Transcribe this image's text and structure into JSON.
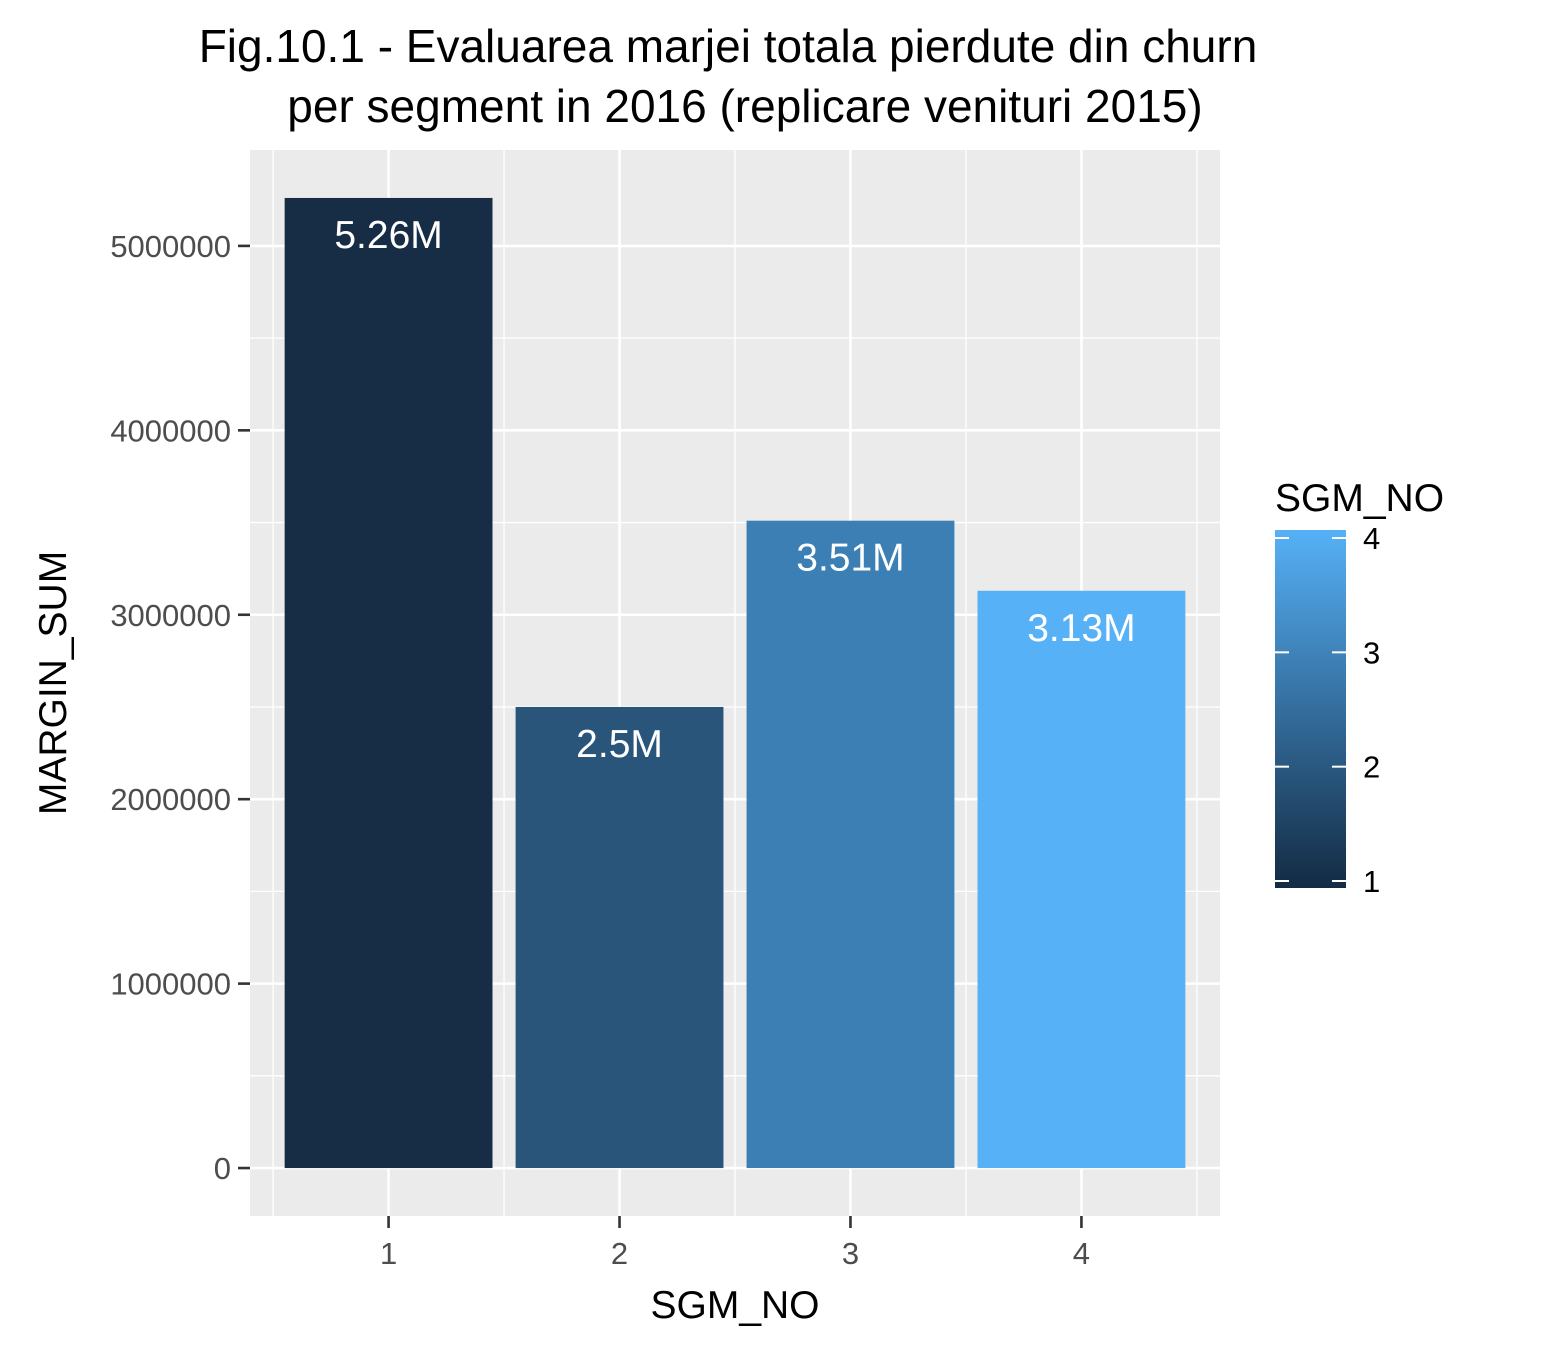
{
  "chart_data": {
    "type": "bar",
    "title_lines": [
      "Fig.10.1 - Evaluarea marjei totala pierdute din churn",
      "per segment in 2016 (replicare venituri 2015)"
    ],
    "xlabel": "SGM_NO",
    "ylabel": "MARGIN_SUM",
    "categories": [
      "1",
      "2",
      "3",
      "4"
    ],
    "values": [
      5260000,
      2500000,
      3510000,
      3130000
    ],
    "data_labels": [
      "5.26M",
      "2.5M",
      "3.51M",
      "3.13M"
    ],
    "bar_colors": [
      "#172d46",
      "#29557a",
      "#3b7fb5",
      "#56b1f7"
    ],
    "y_ticks": [
      0,
      1000000,
      2000000,
      3000000,
      4000000,
      5000000
    ],
    "y_tick_labels": [
      "0",
      "1000000",
      "2000000",
      "3000000",
      "4000000",
      "5000000"
    ],
    "ylim": [
      -260000,
      5520000
    ],
    "grid": true,
    "panel_background": "#ebebeb",
    "grid_color": "#ffffff",
    "legend": {
      "title": "SGM_NO",
      "position": "right",
      "ticks": [
        1,
        2,
        3,
        4
      ],
      "tick_labels": [
        "1",
        "2",
        "3",
        "4"
      ],
      "gradient_low": "#132b43",
      "gradient_high": "#56b1f7"
    }
  }
}
